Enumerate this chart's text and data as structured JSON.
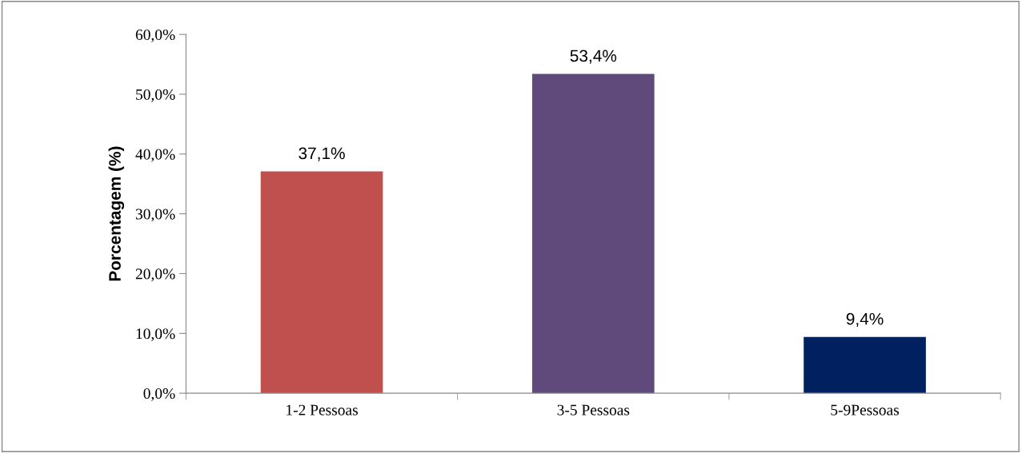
{
  "chart_data": {
    "type": "bar",
    "ylabel": "Porcentagem (%)",
    "categories": [
      "1-2 Pessoas",
      "3-5 Pessoas",
      "5-9Pessoas"
    ],
    "values": [
      37.1,
      53.4,
      9.4
    ],
    "colors": [
      "#c0504d",
      "#604a7b",
      "#002060"
    ],
    "value_labels": [
      "37,1%",
      "53,4%",
      "9,4%"
    ],
    "ylim": [
      0,
      60
    ],
    "yticks": [
      {
        "value": 0,
        "label": "0,0%"
      },
      {
        "value": 10,
        "label": "10,0%"
      },
      {
        "value": 20,
        "label": "20,0%"
      },
      {
        "value": 30,
        "label": "30,0%"
      },
      {
        "value": 40,
        "label": "40,0%"
      },
      {
        "value": 50,
        "label": "50,0%"
      },
      {
        "value": 60,
        "label": "60,0%"
      }
    ],
    "grid": false,
    "legend": false
  }
}
